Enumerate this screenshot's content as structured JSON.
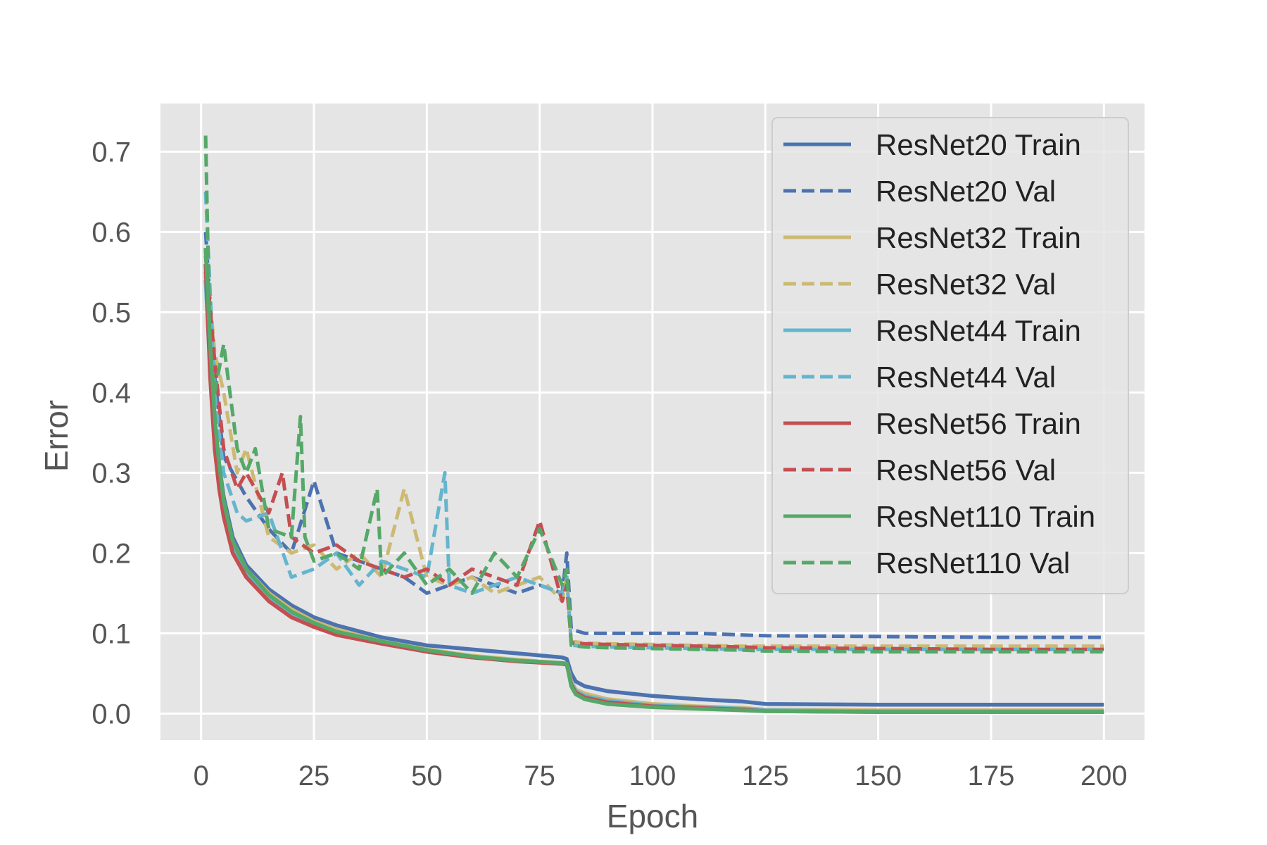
{
  "chart_data": {
    "type": "line",
    "title": "",
    "xlabel": "Epoch",
    "ylabel": "Error",
    "xlim": [
      -9,
      209
    ],
    "ylim": [
      -0.033,
      0.76
    ],
    "xticks": [
      0,
      25,
      50,
      75,
      100,
      125,
      150,
      175,
      200
    ],
    "yticks": [
      0.0,
      0.1,
      0.2,
      0.3,
      0.4,
      0.5,
      0.6,
      0.7
    ],
    "ytick_labels": [
      "0.0",
      "0.1",
      "0.2",
      "0.3",
      "0.4",
      "0.5",
      "0.6",
      "0.7"
    ],
    "grid": true,
    "legend_position": "upper-right",
    "background": "#e5e5e5",
    "series": [
      {
        "name": "ResNet20 Train",
        "color": "#4c72b0",
        "style": "solid",
        "x": [
          1,
          2,
          3,
          4,
          5,
          7,
          10,
          15,
          20,
          25,
          30,
          40,
          50,
          60,
          70,
          80,
          81,
          82,
          83,
          85,
          90,
          100,
          110,
          120,
          125,
          150,
          175,
          200
        ],
        "y": [
          0.55,
          0.45,
          0.36,
          0.31,
          0.27,
          0.22,
          0.185,
          0.155,
          0.135,
          0.12,
          0.11,
          0.095,
          0.085,
          0.08,
          0.075,
          0.07,
          0.068,
          0.05,
          0.04,
          0.034,
          0.028,
          0.022,
          0.018,
          0.015,
          0.012,
          0.011,
          0.011,
          0.011
        ]
      },
      {
        "name": "ResNet20 Val",
        "color": "#4c72b0",
        "style": "dashed",
        "x": [
          1,
          3,
          5,
          8,
          10,
          15,
          20,
          25,
          30,
          35,
          40,
          45,
          50,
          55,
          60,
          65,
          70,
          75,
          80,
          81,
          82,
          85,
          90,
          100,
          110,
          120,
          125,
          150,
          175,
          200
        ],
        "y": [
          0.6,
          0.42,
          0.32,
          0.29,
          0.27,
          0.23,
          0.2,
          0.29,
          0.2,
          0.19,
          0.18,
          0.17,
          0.15,
          0.16,
          0.17,
          0.16,
          0.15,
          0.16,
          0.15,
          0.2,
          0.105,
          0.1,
          0.1,
          0.1,
          0.1,
          0.098,
          0.097,
          0.096,
          0.095,
          0.095
        ]
      },
      {
        "name": "ResNet32 Train",
        "color": "#ccb974",
        "style": "solid",
        "x": [
          1,
          2,
          3,
          4,
          5,
          7,
          10,
          15,
          20,
          25,
          30,
          40,
          50,
          60,
          70,
          80,
          81,
          82,
          83,
          85,
          90,
          100,
          110,
          120,
          125,
          150,
          175,
          200
        ],
        "y": [
          0.55,
          0.44,
          0.35,
          0.3,
          0.26,
          0.215,
          0.18,
          0.15,
          0.13,
          0.115,
          0.105,
          0.09,
          0.08,
          0.072,
          0.067,
          0.063,
          0.062,
          0.04,
          0.03,
          0.025,
          0.018,
          0.012,
          0.009,
          0.007,
          0.005,
          0.004,
          0.004,
          0.004
        ]
      },
      {
        "name": "ResNet32 Val",
        "color": "#ccb974",
        "style": "dashed",
        "x": [
          1,
          3,
          5,
          8,
          10,
          15,
          20,
          25,
          30,
          35,
          40,
          45,
          50,
          55,
          60,
          65,
          70,
          75,
          80,
          81,
          82,
          85,
          90,
          100,
          110,
          120,
          125,
          150,
          175,
          200
        ],
        "y": [
          0.58,
          0.45,
          0.4,
          0.3,
          0.33,
          0.22,
          0.2,
          0.21,
          0.18,
          0.2,
          0.17,
          0.28,
          0.17,
          0.16,
          0.17,
          0.15,
          0.16,
          0.17,
          0.14,
          0.17,
          0.09,
          0.088,
          0.087,
          0.086,
          0.085,
          0.084,
          0.084,
          0.084,
          0.084,
          0.084
        ]
      },
      {
        "name": "ResNet44 Train",
        "color": "#64b5cd",
        "style": "solid",
        "x": [
          1,
          2,
          3,
          4,
          5,
          7,
          10,
          15,
          20,
          25,
          30,
          40,
          50,
          60,
          70,
          80,
          81,
          82,
          83,
          85,
          90,
          100,
          110,
          120,
          125,
          150,
          175,
          200
        ],
        "y": [
          0.54,
          0.43,
          0.34,
          0.29,
          0.25,
          0.205,
          0.175,
          0.145,
          0.125,
          0.11,
          0.1,
          0.088,
          0.078,
          0.07,
          0.066,
          0.062,
          0.061,
          0.038,
          0.028,
          0.022,
          0.016,
          0.01,
          0.008,
          0.006,
          0.004,
          0.003,
          0.003,
          0.003
        ]
      },
      {
        "name": "ResNet44 Val",
        "color": "#64b5cd",
        "style": "dashed",
        "x": [
          1,
          3,
          5,
          8,
          10,
          15,
          20,
          25,
          30,
          35,
          40,
          45,
          50,
          54,
          55,
          60,
          65,
          70,
          75,
          80,
          81,
          82,
          85,
          90,
          100,
          110,
          120,
          125,
          150,
          175,
          200
        ],
        "y": [
          0.65,
          0.4,
          0.3,
          0.25,
          0.24,
          0.25,
          0.17,
          0.18,
          0.2,
          0.16,
          0.19,
          0.18,
          0.17,
          0.3,
          0.16,
          0.15,
          0.16,
          0.17,
          0.16,
          0.15,
          0.17,
          0.085,
          0.084,
          0.083,
          0.082,
          0.081,
          0.08,
          0.08,
          0.08,
          0.08,
          0.08
        ]
      },
      {
        "name": "ResNet56 Train",
        "color": "#c44e52",
        "style": "solid",
        "x": [
          1,
          2,
          3,
          4,
          5,
          7,
          10,
          15,
          20,
          25,
          30,
          40,
          50,
          60,
          70,
          80,
          81,
          82,
          83,
          85,
          90,
          100,
          110,
          120,
          125,
          150,
          175,
          200
        ],
        "y": [
          0.56,
          0.42,
          0.33,
          0.28,
          0.245,
          0.2,
          0.17,
          0.14,
          0.12,
          0.108,
          0.098,
          0.087,
          0.077,
          0.07,
          0.065,
          0.062,
          0.061,
          0.036,
          0.026,
          0.02,
          0.014,
          0.009,
          0.007,
          0.005,
          0.003,
          0.002,
          0.002,
          0.002
        ]
      },
      {
        "name": "ResNet56 Val",
        "color": "#c44e52",
        "style": "dashed",
        "x": [
          1,
          3,
          5,
          8,
          10,
          15,
          18,
          20,
          25,
          30,
          35,
          40,
          45,
          50,
          55,
          60,
          65,
          70,
          75,
          80,
          81,
          82,
          85,
          90,
          100,
          110,
          120,
          125,
          150,
          175,
          200
        ],
        "y": [
          0.57,
          0.44,
          0.33,
          0.28,
          0.3,
          0.25,
          0.3,
          0.22,
          0.2,
          0.21,
          0.19,
          0.18,
          0.17,
          0.18,
          0.16,
          0.18,
          0.17,
          0.16,
          0.24,
          0.14,
          0.16,
          0.088,
          0.087,
          0.086,
          0.085,
          0.084,
          0.083,
          0.082,
          0.081,
          0.08,
          0.08
        ]
      },
      {
        "name": "ResNet110 Train",
        "color": "#55a868",
        "style": "solid",
        "x": [
          1,
          2,
          3,
          4,
          5,
          7,
          10,
          15,
          20,
          25,
          30,
          40,
          50,
          60,
          70,
          80,
          81,
          82,
          83,
          85,
          90,
          100,
          110,
          120,
          125,
          150,
          175,
          200
        ],
        "y": [
          0.58,
          0.46,
          0.37,
          0.31,
          0.265,
          0.215,
          0.18,
          0.148,
          0.127,
          0.113,
          0.102,
          0.09,
          0.079,
          0.071,
          0.066,
          0.063,
          0.062,
          0.034,
          0.024,
          0.018,
          0.012,
          0.008,
          0.006,
          0.004,
          0.003,
          0.002,
          0.002,
          0.002
        ]
      },
      {
        "name": "ResNet110 Val",
        "color": "#55a868",
        "style": "dashed",
        "x": [
          1,
          2,
          3,
          5,
          8,
          10,
          12,
          15,
          20,
          22,
          23,
          25,
          30,
          35,
          39,
          40,
          45,
          50,
          55,
          60,
          65,
          70,
          75,
          80,
          81,
          82,
          85,
          90,
          100,
          110,
          120,
          125,
          150,
          175,
          200
        ],
        "y": [
          0.72,
          0.45,
          0.4,
          0.46,
          0.33,
          0.3,
          0.33,
          0.23,
          0.22,
          0.37,
          0.22,
          0.19,
          0.2,
          0.18,
          0.28,
          0.17,
          0.2,
          0.16,
          0.18,
          0.15,
          0.2,
          0.17,
          0.23,
          0.16,
          0.18,
          0.085,
          0.083,
          0.082,
          0.081,
          0.08,
          0.079,
          0.078,
          0.077,
          0.077,
          0.077
        ]
      }
    ]
  }
}
